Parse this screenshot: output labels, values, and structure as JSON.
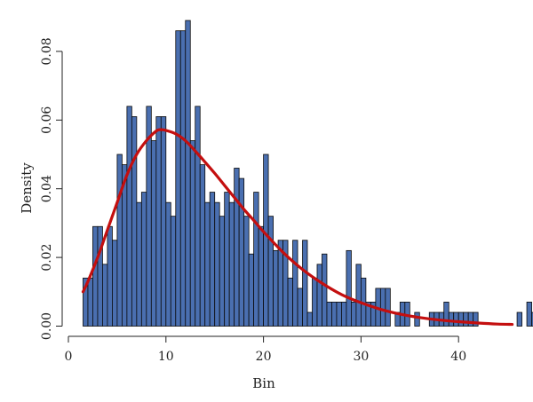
{
  "chart_data": {
    "type": "bar",
    "xlabel": "Bin",
    "ylabel": "Density",
    "xlim": [
      0,
      45.5
    ],
    "ylim": [
      0,
      0.09
    ],
    "x_ticks": [
      0,
      10,
      20,
      30,
      40
    ],
    "y_ticks": [
      0.0,
      0.02,
      0.04,
      0.06,
      0.08
    ],
    "y_tick_labels": [
      "0.00",
      "0.02",
      "0.04",
      "0.06",
      "0.08"
    ],
    "x_tick_labels": [
      "0",
      "10",
      "20",
      "30",
      "40"
    ],
    "bin_start": 1.5,
    "bin_width": 0.5,
    "values": [
      0.014,
      0.014,
      0.029,
      0.029,
      0.018,
      0.029,
      0.025,
      0.05,
      0.047,
      0.064,
      0.061,
      0.036,
      0.039,
      0.064,
      0.054,
      0.061,
      0.061,
      0.036,
      0.032,
      0.086,
      0.086,
      0.089,
      0.054,
      0.064,
      0.047,
      0.036,
      0.039,
      0.036,
      0.032,
      0.039,
      0.036,
      0.046,
      0.043,
      0.032,
      0.021,
      0.039,
      0.029,
      0.05,
      0.032,
      0.022,
      0.025,
      0.025,
      0.014,
      0.025,
      0.011,
      0.025,
      0.004,
      0.014,
      0.018,
      0.021,
      0.007,
      0.007,
      0.007,
      0.007,
      0.022,
      0.007,
      0.018,
      0.014,
      0.007,
      0.007,
      0.011,
      0.011,
      0.011,
      0.0,
      0.004,
      0.007,
      0.007,
      0.0,
      0.004,
      0.0,
      0.0,
      0.004,
      0.004,
      0.004,
      0.007,
      0.004,
      0.004,
      0.004,
      0.004,
      0.004,
      0.004,
      0.0,
      0.0,
      0.0,
      0.0,
      0.0,
      0.0,
      0.0,
      0.0,
      0.004,
      0.0,
      0.007,
      0.004
    ],
    "density_curve": {
      "color": "#c40f0f",
      "x": [
        1.5,
        2,
        3,
        4,
        5,
        6,
        7,
        8,
        9,
        9.5,
        10,
        11,
        12,
        13,
        14,
        15,
        16,
        17,
        18,
        19,
        20,
        22,
        24,
        26,
        28,
        30,
        32,
        34,
        36,
        38,
        40,
        42,
        44,
        45.5
      ],
      "y": [
        0.01,
        0.013,
        0.02,
        0.028,
        0.036,
        0.044,
        0.05,
        0.054,
        0.0568,
        0.0572,
        0.057,
        0.056,
        0.054,
        0.051,
        0.0478,
        0.0445,
        0.041,
        0.0375,
        0.034,
        0.0308,
        0.0275,
        0.0215,
        0.0165,
        0.0125,
        0.0092,
        0.0068,
        0.0049,
        0.0035,
        0.0025,
        0.0018,
        0.0013,
        0.0009,
        0.0006,
        0.0005
      ]
    },
    "bar_color": "#4a6fb0"
  }
}
